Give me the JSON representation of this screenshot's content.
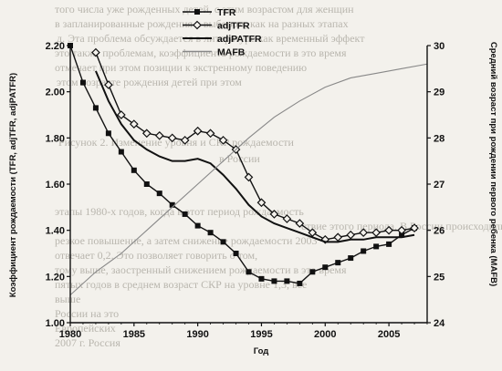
{
  "background_text": [
    "того числа уже рожденных детей, с этим возрастом для женщин",
    "в запланированные рождения к выбором, как на разных этапах",
    "д. Эта проблема обсуждается в литературе как временный эффект",
    "это также проблемам, коэффициента рождаемости в это время",
    "отмечает при этом позиции к экстренному поведению",
    "этом возрасте рождения детей при этом",
    "Рисунок 2. Изменение уровня и СКР рождаемости",
    "в России",
    "этапы 1980-х годов, когда в этот период рождаемость",
    "ствие этого периода. В России происходили",
    "резкое повышение, а затем снижение рождаемости 2003",
    "отвечает 0,2. Это позволяет говорить о том,",
    "тому выше, заостренный снижением рождаемости в это время",
    "пятых годов в среднем возраст СКР на уровне 1,3, все",
    "выше",
    "России на это",
    "Европейских",
    "2007 г. Россия"
  ],
  "chart_data": {
    "type": "line",
    "title": "",
    "xlabel": "Год",
    "ylabel_left": "Коэффициент рождаемости (TFR, adjTFR, adjPATFR)",
    "ylabel_right": "Средний возраст при рождении первого ребенка (MAFB)",
    "xlim": [
      1980,
      2008
    ],
    "ylim_left": [
      1.0,
      2.2
    ],
    "ylim_right": [
      24,
      30
    ],
    "x_ticks": [
      1980,
      1985,
      1990,
      1995,
      2000,
      2005
    ],
    "y_left_ticks": [
      "1.00",
      "1.20",
      "1.40",
      "1.60",
      "1.80",
      "2.00",
      "2.20"
    ],
    "y_right_ticks": [
      "24",
      "25",
      "26",
      "27",
      "28",
      "29",
      "30"
    ],
    "grid": false,
    "legend_position": "top-left",
    "series": [
      {
        "name": "TFR",
        "axis": "left",
        "marker": "square",
        "color": "#111111",
        "x": [
          1980,
          1981,
          1982,
          1983,
          1984,
          1985,
          1986,
          1987,
          1988,
          1989,
          1990,
          1991,
          1992,
          1993,
          1994,
          1995,
          1996,
          1997,
          1998,
          1999,
          2000,
          2001,
          2002,
          2003,
          2004,
          2005,
          2006,
          2007
        ],
        "values": [
          2.2,
          2.04,
          1.93,
          1.82,
          1.74,
          1.66,
          1.6,
          1.56,
          1.51,
          1.47,
          1.42,
          1.39,
          1.35,
          1.3,
          1.22,
          1.19,
          1.18,
          1.18,
          1.17,
          1.22,
          1.24,
          1.26,
          1.28,
          1.31,
          1.33,
          1.34,
          1.38,
          1.41
        ]
      },
      {
        "name": "adjTFR",
        "axis": "left",
        "marker": "diamond",
        "color": "#111111",
        "x": [
          1982,
          1983,
          1984,
          1985,
          1986,
          1987,
          1988,
          1989,
          1990,
          1991,
          1992,
          1993,
          1994,
          1995,
          1996,
          1997,
          1998,
          1999,
          2000,
          2001,
          2002,
          2003,
          2004,
          2005,
          2006,
          2007
        ],
        "values": [
          2.17,
          2.03,
          1.9,
          1.86,
          1.82,
          1.81,
          1.8,
          1.79,
          1.83,
          1.82,
          1.79,
          1.75,
          1.63,
          1.52,
          1.47,
          1.45,
          1.43,
          1.39,
          1.36,
          1.37,
          1.38,
          1.39,
          1.39,
          1.4,
          1.4,
          1.41
        ]
      },
      {
        "name": "adjPATFR",
        "axis": "left",
        "marker": "none",
        "color": "#111111",
        "x": [
          1982,
          1983,
          1984,
          1985,
          1986,
          1987,
          1988,
          1989,
          1990,
          1991,
          1992,
          1993,
          1994,
          1995,
          1996,
          1997,
          1998,
          1999,
          2000,
          2001,
          2002,
          2003,
          2004,
          2005,
          2006,
          2007
        ],
        "values": [
          2.09,
          1.96,
          1.86,
          1.79,
          1.75,
          1.72,
          1.7,
          1.7,
          1.71,
          1.69,
          1.64,
          1.58,
          1.51,
          1.46,
          1.43,
          1.41,
          1.39,
          1.37,
          1.35,
          1.35,
          1.36,
          1.36,
          1.37,
          1.37,
          1.37,
          1.38
        ]
      },
      {
        "name": "MAFB",
        "axis": "right",
        "marker": "none",
        "color": "#888888",
        "x": [
          1980,
          1982,
          1984,
          1986,
          1988,
          1990,
          1992,
          1994,
          1996,
          1998,
          2000,
          2002,
          2004,
          2006,
          2008
        ],
        "values": [
          24.6,
          25.1,
          25.5,
          26.0,
          26.5,
          27.0,
          27.5,
          28.0,
          28.45,
          28.8,
          29.1,
          29.3,
          29.4,
          29.5,
          29.6
        ]
      }
    ]
  }
}
